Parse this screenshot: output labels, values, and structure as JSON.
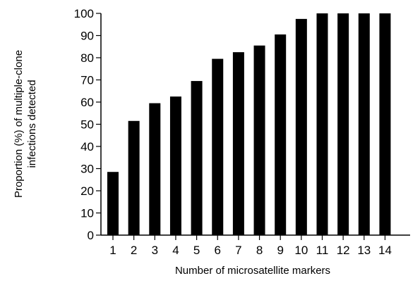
{
  "chart_data": {
    "type": "bar",
    "categories": [
      "1",
      "2",
      "3",
      "4",
      "5",
      "6",
      "7",
      "8",
      "9",
      "10",
      "11",
      "12",
      "13",
      "14"
    ],
    "values": [
      28.5,
      51.5,
      59.5,
      62.5,
      69.5,
      79.5,
      82.5,
      85.5,
      90.5,
      97.5,
      100,
      100,
      100,
      100
    ],
    "title": "",
    "xlabel": "Number of microsatellite markers",
    "ylabel_lines": [
      "Proportion (%) of multiple-clone",
      "infections detected"
    ],
    "ylim": [
      0,
      100
    ],
    "yticks": [
      "0",
      "10",
      "20",
      "30",
      "40",
      "50",
      "60",
      "70",
      "80",
      "90",
      "100"
    ],
    "bar_color": "#000000",
    "grid": false,
    "legend": "none"
  }
}
